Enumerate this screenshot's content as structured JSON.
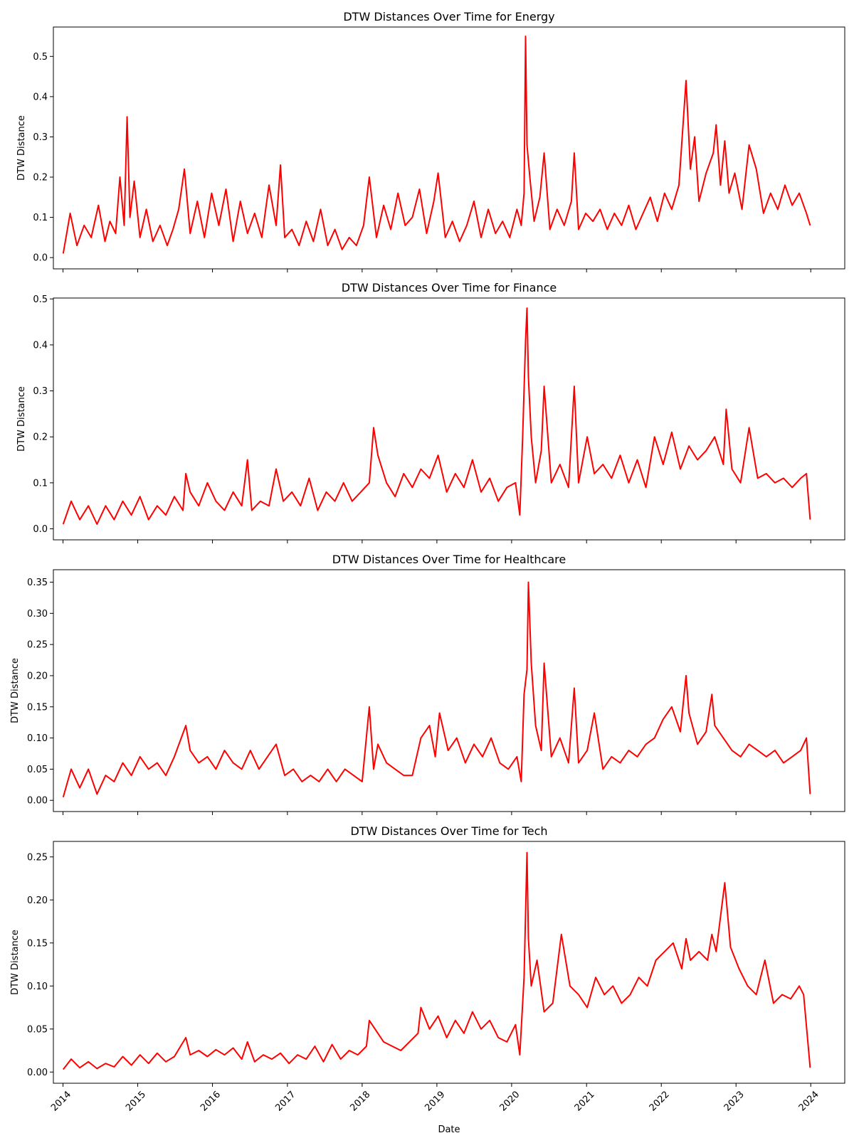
{
  "figure": {
    "xlabel": "Date",
    "x_tick_labels": [
      "2014",
      "2015",
      "2016",
      "2017",
      "2018",
      "2019",
      "2020",
      "2021",
      "2022",
      "2023",
      "2024"
    ]
  },
  "chart_data": [
    {
      "type": "line",
      "title": "DTW Distances Over Time for Energy",
      "ylabel": "DTW Distance",
      "xlim": [
        "2013-11-15",
        "2024-06-15"
      ],
      "ylim": [
        -0.028,
        0.573
      ],
      "yticks": [
        0.0,
        0.1,
        0.2,
        0.3,
        0.4,
        0.5
      ],
      "y_tick_labels": [
        "0.0",
        "0.1",
        "0.2",
        "0.3",
        "0.4",
        "0.5"
      ],
      "color": "#ff0000",
      "grid": false,
      "x": [
        "2014-01-02",
        "2014-02-05",
        "2014-03-10",
        "2014-04-14",
        "2014-05-19",
        "2014-06-23",
        "2014-07-25",
        "2014-08-18",
        "2014-09-15",
        "2014-10-06",
        "2014-10-27",
        "2014-11-10",
        "2014-11-24",
        "2014-12-15",
        "2015-01-12",
        "2015-02-12",
        "2015-03-16",
        "2015-04-20",
        "2015-05-25",
        "2015-06-22",
        "2015-07-20",
        "2015-08-17",
        "2015-09-14",
        "2015-10-19",
        "2015-11-23",
        "2015-12-28",
        "2016-02-01",
        "2016-03-07",
        "2016-04-11",
        "2016-05-16",
        "2016-06-20",
        "2016-07-25",
        "2016-08-29",
        "2016-10-03",
        "2016-11-07",
        "2016-11-28",
        "2016-12-19",
        "2017-01-23",
        "2017-02-27",
        "2017-04-03",
        "2017-05-08",
        "2017-06-12",
        "2017-07-17",
        "2017-08-21",
        "2017-09-25",
        "2017-10-30",
        "2017-12-04",
        "2018-01-08",
        "2018-02-05",
        "2018-03-12",
        "2018-04-16",
        "2018-05-21",
        "2018-06-25",
        "2018-07-30",
        "2018-09-03",
        "2018-10-08",
        "2018-11-12",
        "2018-12-17",
        "2019-01-07",
        "2019-02-11",
        "2019-03-18",
        "2019-04-22",
        "2019-05-27",
        "2019-07-01",
        "2019-08-05",
        "2019-09-09",
        "2019-10-14",
        "2019-11-18",
        "2019-12-23",
        "2020-01-27",
        "2020-02-17",
        "2020-03-02",
        "2020-03-09",
        "2020-03-16",
        "2020-03-30",
        "2020-04-20",
        "2020-05-18",
        "2020-06-08",
        "2020-07-06",
        "2020-08-10",
        "2020-09-14",
        "2020-10-19",
        "2020-11-02",
        "2020-11-23",
        "2020-12-28",
        "2021-02-01",
        "2021-03-08",
        "2021-04-12",
        "2021-05-17",
        "2021-06-21",
        "2021-07-26",
        "2021-08-30",
        "2021-10-04",
        "2021-11-08",
        "2021-12-13",
        "2022-01-17",
        "2022-02-21",
        "2022-03-28",
        "2022-05-02",
        "2022-05-23",
        "2022-06-13",
        "2022-07-04",
        "2022-08-08",
        "2022-09-12",
        "2022-09-26",
        "2022-10-17",
        "2022-11-07",
        "2022-11-28",
        "2022-12-26",
        "2023-01-30",
        "2023-03-06",
        "2023-04-10",
        "2023-05-15",
        "2023-06-19",
        "2023-07-24",
        "2023-08-28",
        "2023-10-02",
        "2023-11-06",
        "2023-12-11",
        "2023-12-29"
      ],
      "y": [
        0.01,
        0.11,
        0.03,
        0.08,
        0.05,
        0.13,
        0.04,
        0.09,
        0.06,
        0.2,
        0.08,
        0.35,
        0.1,
        0.19,
        0.05,
        0.12,
        0.04,
        0.08,
        0.03,
        0.07,
        0.12,
        0.22,
        0.06,
        0.14,
        0.05,
        0.16,
        0.08,
        0.17,
        0.04,
        0.14,
        0.06,
        0.11,
        0.05,
        0.18,
        0.08,
        0.23,
        0.05,
        0.07,
        0.03,
        0.09,
        0.04,
        0.12,
        0.03,
        0.07,
        0.02,
        0.05,
        0.03,
        0.08,
        0.2,
        0.05,
        0.13,
        0.07,
        0.16,
        0.08,
        0.1,
        0.17,
        0.06,
        0.14,
        0.21,
        0.05,
        0.09,
        0.04,
        0.08,
        0.14,
        0.05,
        0.12,
        0.06,
        0.09,
        0.05,
        0.12,
        0.08,
        0.16,
        0.55,
        0.28,
        0.2,
        0.09,
        0.15,
        0.26,
        0.07,
        0.12,
        0.08,
        0.14,
        0.26,
        0.07,
        0.11,
        0.09,
        0.12,
        0.07,
        0.11,
        0.08,
        0.13,
        0.07,
        0.11,
        0.15,
        0.09,
        0.16,
        0.12,
        0.18,
        0.44,
        0.22,
        0.3,
        0.14,
        0.21,
        0.26,
        0.33,
        0.18,
        0.29,
        0.16,
        0.21,
        0.12,
        0.28,
        0.22,
        0.11,
        0.16,
        0.12,
        0.18,
        0.13,
        0.16,
        0.11,
        0.08
      ]
    },
    {
      "type": "line",
      "title": "DTW Distances Over Time for Finance",
      "ylabel": "DTW Distance",
      "xlim": [
        "2013-11-15",
        "2024-06-15"
      ],
      "ylim": [
        -0.024,
        0.502
      ],
      "yticks": [
        0.0,
        0.1,
        0.2,
        0.3,
        0.4,
        0.5
      ],
      "y_tick_labels": [
        "0.0",
        "0.1",
        "0.2",
        "0.3",
        "0.4",
        "0.5"
      ],
      "color": "#ff0000",
      "grid": false,
      "x": [
        "2014-01-02",
        "2014-02-10",
        "2014-03-24",
        "2014-05-05",
        "2014-06-16",
        "2014-07-28",
        "2014-09-08",
        "2014-10-20",
        "2014-12-01",
        "2015-01-12",
        "2015-02-23",
        "2015-04-06",
        "2015-05-18",
        "2015-06-29",
        "2015-08-10",
        "2015-08-24",
        "2015-09-14",
        "2015-10-26",
        "2015-12-07",
        "2016-01-18",
        "2016-02-29",
        "2016-04-11",
        "2016-05-23",
        "2016-06-20",
        "2016-07-11",
        "2016-08-22",
        "2016-10-03",
        "2016-11-07",
        "2016-12-12",
        "2017-01-23",
        "2017-03-06",
        "2017-04-17",
        "2017-05-29",
        "2017-07-10",
        "2017-08-21",
        "2017-10-02",
        "2017-11-13",
        "2017-12-25",
        "2018-02-05",
        "2018-02-26",
        "2018-03-19",
        "2018-04-30",
        "2018-06-11",
        "2018-07-23",
        "2018-09-03",
        "2018-10-15",
        "2018-11-26",
        "2019-01-07",
        "2019-02-18",
        "2019-04-01",
        "2019-05-13",
        "2019-06-24",
        "2019-08-05",
        "2019-09-16",
        "2019-10-28",
        "2019-12-09",
        "2020-01-20",
        "2020-02-10",
        "2020-02-24",
        "2020-03-09",
        "2020-03-16",
        "2020-03-23",
        "2020-04-06",
        "2020-04-27",
        "2020-05-25",
        "2020-06-08",
        "2020-07-13",
        "2020-08-24",
        "2020-10-05",
        "2020-11-02",
        "2020-11-23",
        "2021-01-04",
        "2021-02-08",
        "2021-03-22",
        "2021-05-03",
        "2021-06-14",
        "2021-07-26",
        "2021-09-06",
        "2021-10-18",
        "2021-11-29",
        "2022-01-10",
        "2022-02-21",
        "2022-04-04",
        "2022-05-16",
        "2022-06-27",
        "2022-08-08",
        "2022-09-19",
        "2022-10-31",
        "2022-11-14",
        "2022-12-12",
        "2023-01-23",
        "2023-03-06",
        "2023-04-17",
        "2023-05-29",
        "2023-07-10",
        "2023-08-21",
        "2023-10-02",
        "2023-11-13",
        "2023-12-11",
        "2023-12-29"
      ],
      "y": [
        0.01,
        0.06,
        0.02,
        0.05,
        0.01,
        0.05,
        0.02,
        0.06,
        0.03,
        0.07,
        0.02,
        0.05,
        0.03,
        0.07,
        0.04,
        0.12,
        0.08,
        0.05,
        0.1,
        0.06,
        0.04,
        0.08,
        0.05,
        0.15,
        0.04,
        0.06,
        0.05,
        0.13,
        0.06,
        0.08,
        0.05,
        0.11,
        0.04,
        0.08,
        0.06,
        0.1,
        0.06,
        0.08,
        0.1,
        0.22,
        0.16,
        0.1,
        0.07,
        0.12,
        0.09,
        0.13,
        0.11,
        0.16,
        0.08,
        0.12,
        0.09,
        0.15,
        0.08,
        0.11,
        0.06,
        0.09,
        0.1,
        0.03,
        0.2,
        0.41,
        0.48,
        0.33,
        0.2,
        0.1,
        0.17,
        0.31,
        0.1,
        0.14,
        0.09,
        0.31,
        0.1,
        0.2,
        0.12,
        0.14,
        0.11,
        0.16,
        0.1,
        0.15,
        0.09,
        0.2,
        0.14,
        0.21,
        0.13,
        0.18,
        0.15,
        0.17,
        0.2,
        0.14,
        0.26,
        0.13,
        0.1,
        0.22,
        0.11,
        0.12,
        0.1,
        0.11,
        0.09,
        0.11,
        0.12,
        0.02
      ]
    },
    {
      "type": "line",
      "title": "DTW Distances Over Time for Healthcare",
      "ylabel": "DTW Distance",
      "xlim": [
        "2013-11-15",
        "2024-06-15"
      ],
      "ylim": [
        -0.018,
        0.37
      ],
      "yticks": [
        0.0,
        0.05,
        0.1,
        0.15,
        0.2,
        0.25,
        0.3,
        0.35
      ],
      "y_tick_labels": [
        "0.00",
        "0.05",
        "0.10",
        "0.15",
        "0.20",
        "0.25",
        "0.30",
        "0.35"
      ],
      "color": "#ff0000",
      "grid": false,
      "x": [
        "2014-01-02",
        "2014-02-10",
        "2014-03-24",
        "2014-05-05",
        "2014-06-16",
        "2014-07-28",
        "2014-09-08",
        "2014-10-20",
        "2014-12-01",
        "2015-01-12",
        "2015-02-23",
        "2015-04-06",
        "2015-05-18",
        "2015-06-29",
        "2015-08-24",
        "2015-09-14",
        "2015-10-26",
        "2015-12-07",
        "2016-01-18",
        "2016-02-29",
        "2016-04-11",
        "2016-05-23",
        "2016-07-04",
        "2016-08-15",
        "2016-09-26",
        "2016-11-07",
        "2016-12-19",
        "2017-01-30",
        "2017-03-13",
        "2017-04-24",
        "2017-06-05",
        "2017-07-17",
        "2017-08-28",
        "2017-10-09",
        "2017-11-20",
        "2018-01-01",
        "2018-02-05",
        "2018-02-26",
        "2018-03-19",
        "2018-04-30",
        "2018-06-11",
        "2018-07-23",
        "2018-09-03",
        "2018-10-15",
        "2018-11-26",
        "2018-12-24",
        "2019-01-14",
        "2019-02-25",
        "2019-04-08",
        "2019-05-20",
        "2019-07-01",
        "2019-08-12",
        "2019-09-23",
        "2019-11-04",
        "2019-12-16",
        "2020-01-27",
        "2020-02-17",
        "2020-03-02",
        "2020-03-16",
        "2020-03-23",
        "2020-04-06",
        "2020-04-27",
        "2020-05-25",
        "2020-06-08",
        "2020-07-13",
        "2020-08-24",
        "2020-10-05",
        "2020-11-02",
        "2020-11-23",
        "2021-01-04",
        "2021-02-08",
        "2021-03-22",
        "2021-05-03",
        "2021-06-14",
        "2021-07-26",
        "2021-09-06",
        "2021-10-18",
        "2021-11-29",
        "2022-01-10",
        "2022-02-21",
        "2022-04-04",
        "2022-05-02",
        "2022-05-16",
        "2022-06-27",
        "2022-08-08",
        "2022-09-05",
        "2022-09-19",
        "2022-10-31",
        "2022-12-12",
        "2023-01-23",
        "2023-03-06",
        "2023-04-17",
        "2023-05-29",
        "2023-07-10",
        "2023-08-21",
        "2023-10-02",
        "2023-11-13",
        "2023-12-11",
        "2023-12-29"
      ],
      "y": [
        0.005,
        0.05,
        0.02,
        0.05,
        0.01,
        0.04,
        0.03,
        0.06,
        0.04,
        0.07,
        0.05,
        0.06,
        0.04,
        0.07,
        0.12,
        0.08,
        0.06,
        0.07,
        0.05,
        0.08,
        0.06,
        0.05,
        0.08,
        0.05,
        0.07,
        0.09,
        0.04,
        0.05,
        0.03,
        0.04,
        0.03,
        0.05,
        0.03,
        0.05,
        0.04,
        0.03,
        0.15,
        0.05,
        0.09,
        0.06,
        0.05,
        0.04,
        0.04,
        0.1,
        0.12,
        0.07,
        0.14,
        0.08,
        0.1,
        0.06,
        0.09,
        0.07,
        0.1,
        0.06,
        0.05,
        0.07,
        0.03,
        0.17,
        0.21,
        0.35,
        0.22,
        0.12,
        0.08,
        0.22,
        0.07,
        0.1,
        0.06,
        0.18,
        0.06,
        0.08,
        0.14,
        0.05,
        0.07,
        0.06,
        0.08,
        0.07,
        0.09,
        0.1,
        0.13,
        0.15,
        0.11,
        0.2,
        0.14,
        0.09,
        0.11,
        0.17,
        0.12,
        0.1,
        0.08,
        0.07,
        0.09,
        0.08,
        0.07,
        0.08,
        0.06,
        0.07,
        0.08,
        0.1,
        0.01
      ]
    },
    {
      "type": "line",
      "title": "DTW Distances Over Time for Tech",
      "ylabel": "DTW Distance",
      "xlim": [
        "2013-11-15",
        "2024-06-15"
      ],
      "ylim": [
        -0.013,
        0.268
      ],
      "yticks": [
        0.0,
        0.05,
        0.1,
        0.15,
        0.2,
        0.25
      ],
      "y_tick_labels": [
        "0.00",
        "0.05",
        "0.10",
        "0.15",
        "0.20",
        "0.25"
      ],
      "color": "#ff0000",
      "grid": false,
      "x": [
        "2014-01-02",
        "2014-02-10",
        "2014-03-24",
        "2014-05-05",
        "2014-06-16",
        "2014-07-28",
        "2014-09-08",
        "2014-10-20",
        "2014-12-01",
        "2015-01-12",
        "2015-02-23",
        "2015-04-06",
        "2015-05-18",
        "2015-06-29",
        "2015-08-24",
        "2015-09-14",
        "2015-10-26",
        "2015-12-07",
        "2016-01-18",
        "2016-02-29",
        "2016-04-11",
        "2016-05-23",
        "2016-06-20",
        "2016-07-25",
        "2016-09-05",
        "2016-10-17",
        "2016-11-28",
        "2017-01-09",
        "2017-02-20",
        "2017-04-03",
        "2017-05-15",
        "2017-06-26",
        "2017-08-07",
        "2017-09-18",
        "2017-10-30",
        "2017-12-11",
        "2018-01-22",
        "2018-02-05",
        "2018-03-05",
        "2018-04-16",
        "2018-05-28",
        "2018-07-09",
        "2018-08-20",
        "2018-10-01",
        "2018-10-15",
        "2018-11-26",
        "2019-01-07",
        "2019-02-18",
        "2019-04-01",
        "2019-05-13",
        "2019-06-24",
        "2019-08-05",
        "2019-09-16",
        "2019-10-28",
        "2019-12-09",
        "2020-01-20",
        "2020-02-10",
        "2020-03-02",
        "2020-03-16",
        "2020-03-23",
        "2020-04-06",
        "2020-05-04",
        "2020-06-08",
        "2020-07-20",
        "2020-08-31",
        "2020-10-12",
        "2020-11-23",
        "2021-01-04",
        "2021-02-15",
        "2021-03-29",
        "2021-05-10",
        "2021-06-21",
        "2021-08-02",
        "2021-09-13",
        "2021-10-25",
        "2021-12-06",
        "2022-01-17",
        "2022-02-28",
        "2022-04-11",
        "2022-05-02",
        "2022-05-23",
        "2022-07-04",
        "2022-08-15",
        "2022-09-05",
        "2022-09-26",
        "2022-11-07",
        "2022-12-05",
        "2023-01-16",
        "2023-02-27",
        "2023-04-10",
        "2023-05-22",
        "2023-07-03",
        "2023-08-14",
        "2023-09-25",
        "2023-11-06",
        "2023-11-27",
        "2023-12-29"
      ],
      "y": [
        0.003,
        0.015,
        0.005,
        0.012,
        0.004,
        0.01,
        0.006,
        0.018,
        0.008,
        0.02,
        0.01,
        0.022,
        0.012,
        0.018,
        0.04,
        0.02,
        0.025,
        0.018,
        0.026,
        0.02,
        0.028,
        0.015,
        0.035,
        0.012,
        0.02,
        0.015,
        0.022,
        0.01,
        0.02,
        0.015,
        0.03,
        0.012,
        0.032,
        0.015,
        0.025,
        0.02,
        0.03,
        0.06,
        0.05,
        0.035,
        0.03,
        0.025,
        0.035,
        0.045,
        0.075,
        0.05,
        0.065,
        0.04,
        0.06,
        0.045,
        0.07,
        0.05,
        0.06,
        0.04,
        0.035,
        0.055,
        0.02,
        0.11,
        0.255,
        0.155,
        0.1,
        0.13,
        0.07,
        0.08,
        0.16,
        0.1,
        0.09,
        0.075,
        0.11,
        0.09,
        0.1,
        0.08,
        0.09,
        0.11,
        0.1,
        0.13,
        0.14,
        0.15,
        0.12,
        0.155,
        0.13,
        0.14,
        0.13,
        0.16,
        0.14,
        0.22,
        0.145,
        0.12,
        0.1,
        0.09,
        0.13,
        0.08,
        0.09,
        0.085,
        0.1,
        0.09,
        0.005
      ]
    }
  ]
}
